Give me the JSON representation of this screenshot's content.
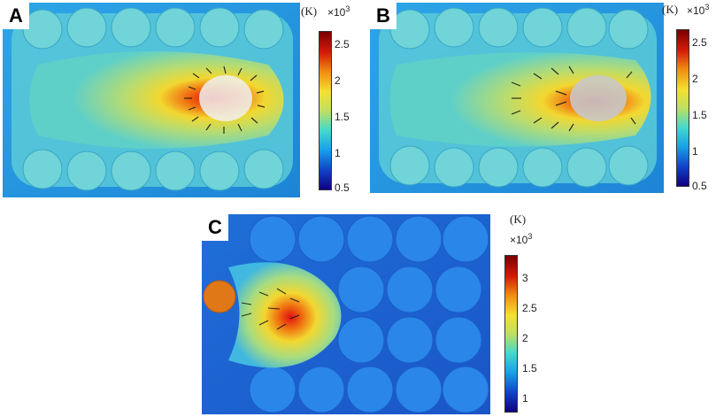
{
  "panels": [
    {
      "label": "A",
      "unit": "(K)",
      "multiplier_base": "×10",
      "multiplier_exp": "3",
      "ticks": [
        "2.5",
        "2",
        "1.5",
        "1",
        "0.5"
      ]
    },
    {
      "label": "B",
      "unit": "(K)",
      "multiplier_base": "×10",
      "multiplier_exp": "3",
      "ticks": [
        "2.5",
        "2",
        "1.5",
        "1",
        "0.5"
      ]
    },
    {
      "label": "C",
      "unit": "(K)",
      "multiplier_base": "×10",
      "multiplier_exp": "3",
      "ticks": [
        "3",
        "2.5",
        "2",
        "1.5",
        "1"
      ]
    }
  ],
  "colormap": [
    "#7a0000",
    "#d41a0a",
    "#f08a10",
    "#f5e030",
    "#bfe060",
    "#40d8d0",
    "#18a0e8",
    "#1040c8",
    "#100080"
  ]
}
